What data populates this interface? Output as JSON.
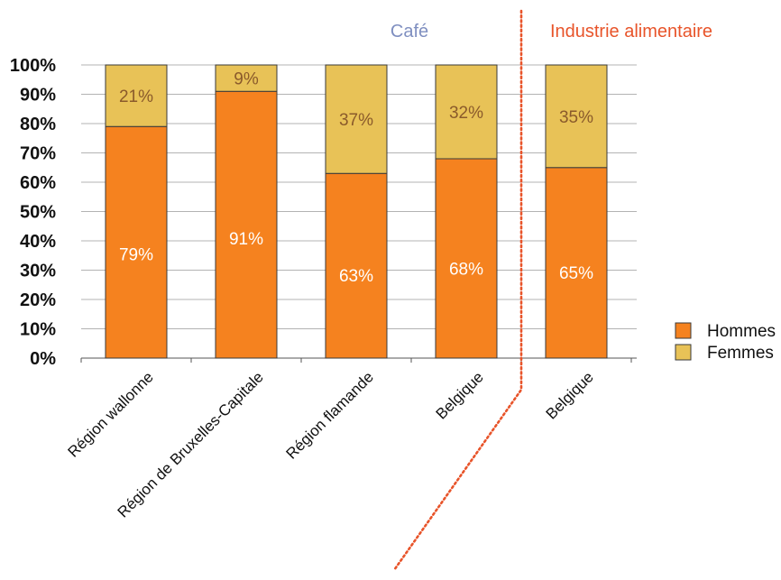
{
  "chart_data": {
    "type": "bar",
    "stacked": true,
    "percent_stacked": true,
    "categories": [
      "Région wallonne",
      "Région de Bruxelles-Capitale",
      "Région flamande",
      "Belgique",
      "Belgique"
    ],
    "series": [
      {
        "name": "Hommes",
        "values": [
          79,
          91,
          63,
          68,
          65
        ],
        "color": "#f5821f",
        "label_color": "#ffffff"
      },
      {
        "name": "Femmes",
        "values": [
          21,
          9,
          37,
          32,
          35
        ],
        "color": "#e8c257",
        "label_color": "#8a5a2b"
      }
    ],
    "value_suffix": "%",
    "ylim": [
      0,
      100
    ],
    "yticks": [
      "0%",
      "10%",
      "20%",
      "30%",
      "40%",
      "50%",
      "60%",
      "70%",
      "80%",
      "90%",
      "100%"
    ],
    "grid": true,
    "legend_position": "right",
    "groups": [
      {
        "label": "Café",
        "color": "#7f8fc0",
        "categories": [
          0,
          1,
          2,
          3
        ]
      },
      {
        "label": "Industrie alimentaire",
        "color": "#e8542a",
        "categories": [
          4
        ]
      }
    ],
    "separator_color": "#e8542a"
  }
}
